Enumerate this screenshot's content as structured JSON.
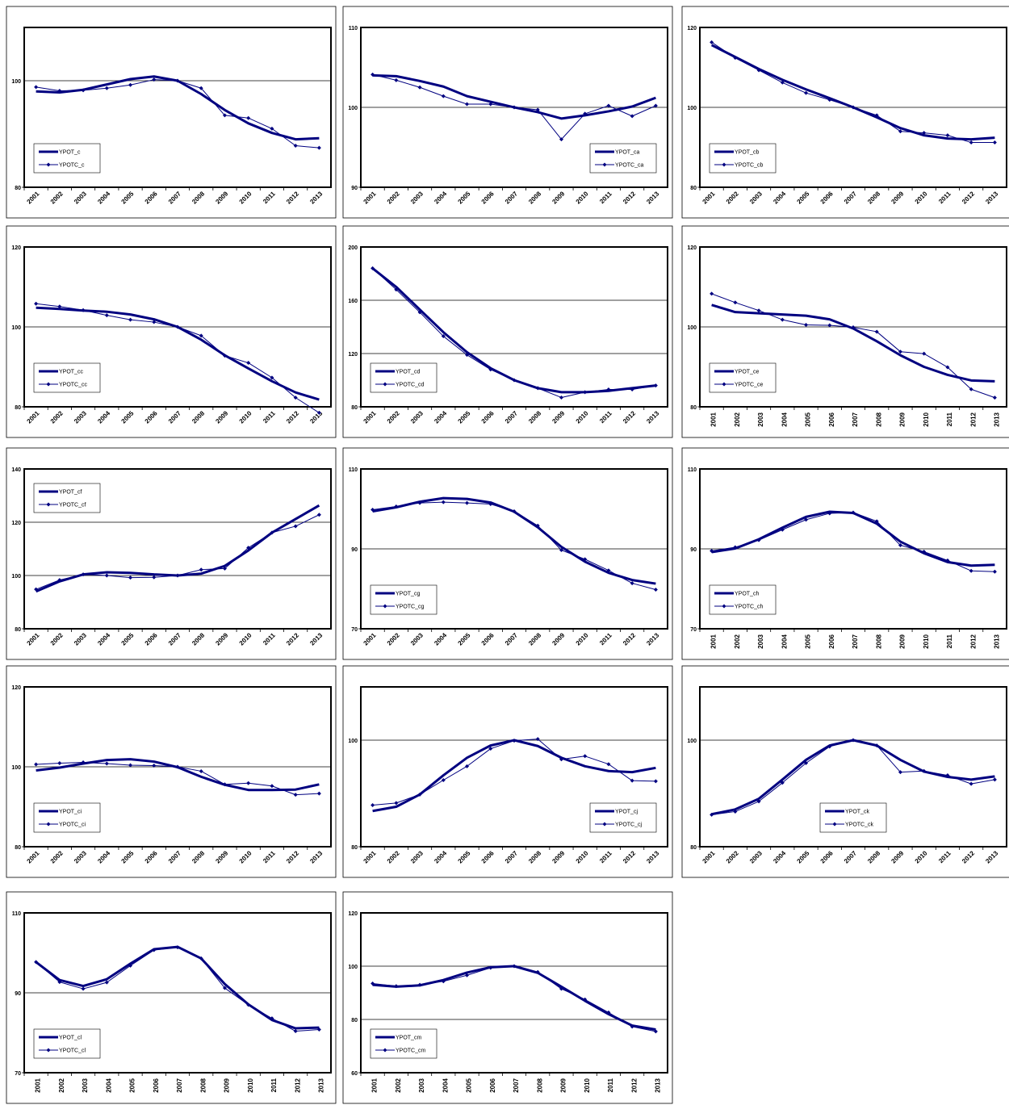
{
  "chart_data": [
    {
      "type": "line",
      "categories": [
        "2001",
        "2002",
        "2003",
        "2004",
        "2005",
        "2006",
        "2007",
        "2008",
        "2009",
        "2010",
        "2011",
        "2012",
        "2013"
      ],
      "series": [
        {
          "name": "YPOT_c",
          "color": "#000080",
          "linewidth": 3,
          "values": [
            98,
            97.8,
            98.3,
            99.3,
            100.3,
            100.8,
            100,
            97.5,
            94.5,
            92,
            90.2,
            89,
            89.2
          ]
        },
        {
          "name": "YPOTC_c",
          "color": "#000080",
          "linewidth": 1,
          "marker": "diamond",
          "values": [
            98.8,
            98.1,
            98.2,
            98.6,
            99.2,
            100.2,
            100,
            98.6,
            93.5,
            93,
            91,
            87.8,
            87.4
          ]
        }
      ],
      "ylim": [
        80,
        110
      ],
      "yticks": [
        80,
        100
      ],
      "grid": true,
      "legend": "lower left",
      "xlabel_rotation": 45
    },
    {
      "type": "line",
      "categories": [
        "2001",
        "2002",
        "2003",
        "2004",
        "2005",
        "2006",
        "2007",
        "2008",
        "2009",
        "2010",
        "2011",
        "2012",
        "2013"
      ],
      "series": [
        {
          "name": "YPOT_ca",
          "color": "#000080",
          "linewidth": 3,
          "values": [
            104,
            103.9,
            103.3,
            102.6,
            101.4,
            100.7,
            100,
            99.4,
            98.6,
            99,
            99.5,
            100.1,
            101.2
          ]
        },
        {
          "name": "YPOTC_ca",
          "color": "#000080",
          "linewidth": 1,
          "marker": "diamond",
          "values": [
            104.1,
            103.4,
            102.5,
            101.4,
            100.4,
            100.4,
            100,
            99.7,
            96,
            99.2,
            100.2,
            98.9,
            100.2
          ]
        }
      ],
      "ylim": [
        90,
        110
      ],
      "yticks": [
        90,
        100,
        110
      ],
      "grid": true,
      "legend": "lower right",
      "xlabel_rotation": 45
    },
    {
      "type": "line",
      "categories": [
        "2001",
        "2002",
        "2003",
        "2004",
        "2005",
        "2006",
        "2007",
        "2008",
        "2009",
        "2010",
        "2011",
        "2012",
        "2013"
      ],
      "series": [
        {
          "name": "YPOT_cb",
          "color": "#000080",
          "linewidth": 3,
          "values": [
            115.6,
            112.6,
            109.6,
            106.9,
            104.5,
            102.3,
            100,
            97.5,
            94.8,
            93,
            92.2,
            92,
            92.4
          ]
        },
        {
          "name": "YPOTC_cb",
          "color": "#000080",
          "linewidth": 1,
          "marker": "diamond",
          "values": [
            116.3,
            112.4,
            109.3,
            106.2,
            103.6,
            101.9,
            100,
            98,
            94,
            93.6,
            93,
            91.2,
            91.2
          ]
        }
      ],
      "ylim": [
        80,
        120
      ],
      "yticks": [
        80,
        100,
        120
      ],
      "grid": true,
      "legend": "lower left",
      "xlabel_rotation": 45
    },
    {
      "type": "line",
      "categories": [
        "2001",
        "2002",
        "2003",
        "2004",
        "2005",
        "2006",
        "2007",
        "2008",
        "2009",
        "2010",
        "2011",
        "2012",
        "2013"
      ],
      "series": [
        {
          "name": "YPOT_cc",
          "color": "#000080",
          "linewidth": 3,
          "values": [
            104.8,
            104.5,
            104.1,
            103.8,
            103.1,
            101.9,
            100,
            96.8,
            92.9,
            89.6,
            86.4,
            83.6,
            81.8
          ]
        },
        {
          "name": "YPOTC_cc",
          "color": "#000080",
          "linewidth": 1,
          "marker": "diamond",
          "values": [
            105.8,
            105.1,
            104.2,
            102.9,
            101.8,
            101.2,
            100,
            97.8,
            92.8,
            91,
            87.3,
            82.3,
            78.5
          ]
        }
      ],
      "ylim": [
        80,
        120
      ],
      "yticks": [
        80,
        100,
        120
      ],
      "grid": true,
      "legend": "lower left",
      "xlabel_rotation": 45
    },
    {
      "type": "line",
      "categories": [
        "2001",
        "2002",
        "2003",
        "2004",
        "2005",
        "2006",
        "2007",
        "2008",
        "2009",
        "2010",
        "2011",
        "2012",
        "2013"
      ],
      "series": [
        {
          "name": "YPOT_cd",
          "color": "#000080",
          "linewidth": 3,
          "values": [
            184,
            170,
            153,
            136,
            121,
            109,
            100,
            94,
            91,
            91,
            92,
            94,
            96
          ]
        },
        {
          "name": "YPOTC_cd",
          "color": "#000080",
          "linewidth": 1,
          "marker": "diamond",
          "values": [
            184,
            168,
            151,
            133,
            119,
            108,
            100,
            94,
            87,
            91,
            93,
            93,
            96
          ]
        }
      ],
      "ylim": [
        80,
        200
      ],
      "yticks": [
        80,
        120,
        160,
        200
      ],
      "grid": true,
      "legend": "lower left",
      "xlabel_rotation": 45
    },
    {
      "type": "line",
      "categories": [
        "2001",
        "2002",
        "2003",
        "2004",
        "2005",
        "2006",
        "2007",
        "2008",
        "2009",
        "2010",
        "2011",
        "2012",
        "2013"
      ],
      "series": [
        {
          "name": "YPOT_ce",
          "color": "#000080",
          "linewidth": 3,
          "values": [
            105.5,
            103.7,
            103.4,
            103.1,
            102.8,
            101.9,
            99.6,
            96.4,
            92.9,
            90,
            88,
            86.6,
            86.4
          ]
        },
        {
          "name": "YPOTC_ce",
          "color": "#000080",
          "linewidth": 1,
          "marker": "diamond",
          "values": [
            108.3,
            106.1,
            104.1,
            101.8,
            100.5,
            100.4,
            99.9,
            98.8,
            93.8,
            93.3,
            89.9,
            84.4,
            82.3
          ]
        }
      ],
      "ylim": [
        80,
        120
      ],
      "yticks": [
        80,
        100,
        120
      ],
      "grid": true,
      "legend": "lower left",
      "xlabel_rotation": 90
    },
    {
      "type": "line",
      "categories": [
        "2001",
        "2002",
        "2003",
        "2004",
        "2005",
        "2006",
        "2007",
        "2008",
        "2009",
        "2010",
        "2011",
        "2012",
        "2013"
      ],
      "series": [
        {
          "name": "YPOT_cf",
          "color": "#000080",
          "linewidth": 3,
          "values": [
            94,
            97.8,
            100.4,
            101.2,
            101,
            100.4,
            100,
            100.7,
            103.6,
            109.4,
            116.1,
            121.2,
            126.3
          ]
        },
        {
          "name": "YPOTC_cf",
          "color": "#000080",
          "linewidth": 1,
          "marker": "diamond",
          "values": [
            94.8,
            98.3,
            100.4,
            100,
            99.2,
            99.3,
            100,
            102.2,
            102.6,
            110.4,
            116.1,
            118.5,
            122.8
          ]
        }
      ],
      "ylim": [
        80,
        140
      ],
      "yticks": [
        80,
        100,
        120,
        140
      ],
      "grid": true,
      "legend": "upper left",
      "xlabel_rotation": 45
    },
    {
      "type": "line",
      "categories": [
        "2001",
        "2002",
        "2003",
        "2004",
        "2005",
        "2006",
        "2007",
        "2008",
        "2009",
        "2010",
        "2011",
        "2012",
        "2013"
      ],
      "series": [
        {
          "name": "YPOT_cg",
          "color": "#000080",
          "linewidth": 3,
          "values": [
            99.4,
            100.4,
            101.8,
            102.7,
            102.5,
            101.6,
            99.3,
            95.4,
            90.5,
            86.8,
            84,
            82.2,
            81.3
          ]
        },
        {
          "name": "YPOTC_cg",
          "color": "#000080",
          "linewidth": 1,
          "marker": "diamond",
          "values": [
            99.8,
            100.6,
            101.5,
            101.7,
            101.5,
            101.2,
            99.4,
            95.8,
            89.7,
            87.4,
            84.6,
            81.4,
            79.8
          ]
        }
      ],
      "ylim": [
        70,
        110
      ],
      "yticks": [
        70,
        90,
        110
      ],
      "grid": true,
      "legend": "lower left",
      "xlabel_rotation": 45
    },
    {
      "type": "line",
      "categories": [
        "2001",
        "2002",
        "2003",
        "2004",
        "2005",
        "2006",
        "2007",
        "2008",
        "2009",
        "2010",
        "2011",
        "2012",
        "2013"
      ],
      "series": [
        {
          "name": "YPOT_ch",
          "color": "#000080",
          "linewidth": 3,
          "values": [
            89.2,
            90.1,
            92.4,
            95.3,
            98,
            99.3,
            99,
            96.3,
            91.8,
            88.9,
            86.7,
            85.8,
            86
          ]
        },
        {
          "name": "YPOTC_ch",
          "color": "#000080",
          "linewidth": 1,
          "marker": "diamond",
          "values": [
            89.5,
            90.4,
            92.2,
            94.8,
            97.3,
            98.9,
            99.1,
            96.9,
            90.9,
            89.3,
            87.1,
            84.5,
            84.3
          ]
        }
      ],
      "ylim": [
        70,
        110
      ],
      "yticks": [
        70,
        90,
        110
      ],
      "grid": true,
      "legend": "lower left",
      "xlabel_rotation": 90
    },
    {
      "type": "line",
      "categories": [
        "2001",
        "2002",
        "2003",
        "2004",
        "2005",
        "2006",
        "2007",
        "2008",
        "2009",
        "2010",
        "2011",
        "2012",
        "2013"
      ],
      "series": [
        {
          "name": "YPOT_ci",
          "color": "#000080",
          "linewidth": 3,
          "values": [
            99.1,
            99.8,
            100.8,
            101.7,
            101.9,
            101.3,
            99.9,
            97.5,
            95.5,
            94.2,
            94.2,
            94.3,
            95.6
          ]
        },
        {
          "name": "YPOTC_ci",
          "color": "#000080",
          "linewidth": 1,
          "marker": "diamond",
          "values": [
            100.6,
            100.9,
            101.1,
            100.8,
            100.4,
            100.3,
            100,
            98.9,
            95.6,
            95.9,
            95.2,
            93,
            93.3
          ]
        }
      ],
      "ylim": [
        80,
        120
      ],
      "yticks": [
        80,
        100,
        120
      ],
      "grid": true,
      "legend": "lower left",
      "xlabel_rotation": 45
    },
    {
      "type": "line",
      "categories": [
        "2001",
        "2002",
        "2003",
        "2004",
        "2005",
        "2006",
        "2007",
        "2008",
        "2009",
        "2010",
        "2011",
        "2012",
        "2013"
      ],
      "series": [
        {
          "name": "YPOT_cj",
          "color": "#000080",
          "linewidth": 3,
          "values": [
            86.7,
            87.5,
            89.8,
            93.4,
            96.7,
            99,
            100,
            98.9,
            96.7,
            95.1,
            94.2,
            94,
            94.8
          ]
        },
        {
          "name": "YPOTC_cj",
          "color": "#000080",
          "linewidth": 1,
          "marker": "diamond",
          "values": [
            87.8,
            88.2,
            89.8,
            92.5,
            95.1,
            98.4,
            99.9,
            100.2,
            96.4,
            97,
            95.5,
            92.4,
            92.3
          ]
        }
      ],
      "ylim": [
        80,
        110
      ],
      "yticks": [
        80,
        100
      ],
      "grid": true,
      "legend": "lower right",
      "xlabel_rotation": 45
    },
    {
      "type": "line",
      "categories": [
        "2001",
        "2002",
        "2003",
        "2004",
        "2005",
        "2006",
        "2007",
        "2008",
        "2009",
        "2010",
        "2011",
        "2012",
        "2013"
      ],
      "series": [
        {
          "name": "YPOT_ck",
          "color": "#000080",
          "linewidth": 3,
          "values": [
            86.1,
            87,
            89,
            92.6,
            96.3,
            99,
            100,
            99,
            96.3,
            94.1,
            93.1,
            92.6,
            93.2
          ]
        },
        {
          "name": "YPOTC_ck",
          "color": "#000080",
          "linewidth": 1,
          "marker": "diamond",
          "values": [
            86,
            86.6,
            88.5,
            92,
            95.7,
            98.8,
            100,
            99,
            94,
            94.2,
            93.4,
            91.8,
            92.6
          ]
        }
      ],
      "ylim": [
        80,
        110
      ],
      "yticks": [
        80,
        100
      ],
      "grid": true,
      "legend": "lower center",
      "xlabel_rotation": 45
    },
    {
      "type": "line",
      "categories": [
        "2001",
        "2002",
        "2003",
        "2004",
        "2005",
        "2006",
        "2007",
        "2008",
        "2009",
        "2010",
        "2011",
        "2012",
        "2013"
      ],
      "series": [
        {
          "name": "YPOT_cl",
          "color": "#000080",
          "linewidth": 3,
          "values": [
            97.7,
            93.2,
            91.7,
            93.4,
            97.3,
            100.9,
            101.5,
            98.6,
            92.2,
            87.1,
            83.2,
            81.1,
            81.3
          ]
        },
        {
          "name": "YPOTC_cl",
          "color": "#000080",
          "linewidth": 1,
          "marker": "diamond",
          "values": [
            97.7,
            92.7,
            91,
            92.6,
            96.8,
            100.7,
            101.4,
            98.6,
            91.2,
            87,
            83.6,
            80.4,
            80.8
          ]
        }
      ],
      "ylim": [
        70,
        110
      ],
      "yticks": [
        70,
        90,
        110
      ],
      "grid": true,
      "legend": "lower left",
      "xlabel_rotation": 90
    },
    {
      "type": "line",
      "categories": [
        "2001",
        "2002",
        "2003",
        "2004",
        "2005",
        "2006",
        "2007",
        "2008",
        "2009",
        "2010",
        "2011",
        "2012",
        "2013"
      ],
      "series": [
        {
          "name": "YPOT_cm",
          "color": "#000080",
          "linewidth": 3,
          "values": [
            93,
            92.3,
            92.8,
            94.8,
            97.6,
            99.6,
            100,
            97.5,
            92.3,
            87,
            82,
            77.7,
            76.2
          ]
        },
        {
          "name": "YPOTC_cm",
          "color": "#000080",
          "linewidth": 1,
          "marker": "diamond",
          "values": [
            93.5,
            92.5,
            93,
            94.3,
            96.6,
            99.4,
            100,
            97.8,
            91.5,
            87.5,
            82.6,
            77.3,
            75.5
          ]
        }
      ],
      "ylim": [
        60,
        120
      ],
      "yticks": [
        60,
        80,
        100,
        120
      ],
      "grid": true,
      "legend": "lower left",
      "xlabel_rotation": 90
    }
  ]
}
